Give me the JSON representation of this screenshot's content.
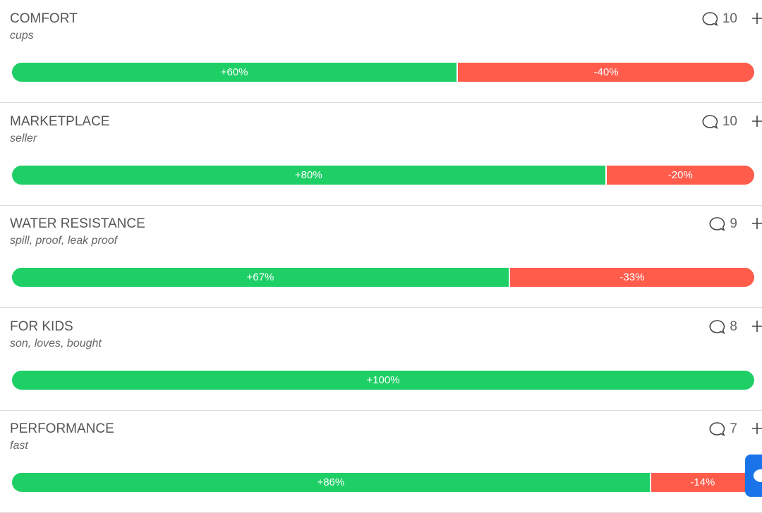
{
  "items": [
    {
      "name": "COMFORT",
      "keywords": "cups",
      "comments": 10,
      "positive": 60,
      "positive_label": "+60%",
      "negative": -40,
      "negative_label": "-40%"
    },
    {
      "name": "MARKETPLACE",
      "keywords": "seller",
      "comments": 10,
      "positive": 80,
      "positive_label": "+80%",
      "negative": -20,
      "negative_label": "-20%"
    },
    {
      "name": "WATER RESISTANCE",
      "keywords": "spill, proof, leak proof",
      "comments": 9,
      "positive": 67,
      "positive_label": "+67%",
      "negative": -33,
      "negative_label": "-33%"
    },
    {
      "name": "FOR KIDS",
      "keywords": "son, loves, bought",
      "comments": 8,
      "positive": 100,
      "positive_label": "+100%"
    },
    {
      "name": "PERFORMANCE",
      "keywords": "fast",
      "comments": 7,
      "positive": 86,
      "positive_label": "+86%",
      "negative": -14,
      "negative_label": "-14%"
    }
  ]
}
